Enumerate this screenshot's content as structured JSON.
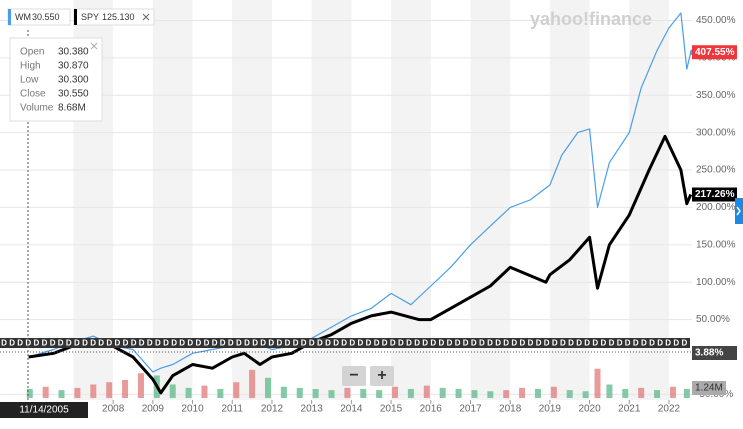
{
  "chart_data": {
    "type": "line",
    "watermark": "yahoo!finance",
    "legend": [
      {
        "name": "WM",
        "price": "30.550"
      },
      {
        "name": "SPY",
        "price": "125.130"
      }
    ],
    "tooltip": {
      "date": "11/14/2005",
      "rows": [
        {
          "label": "Open",
          "value": "30.380"
        },
        {
          "label": "High",
          "value": "30.870"
        },
        {
          "label": "Low",
          "value": "30.300"
        },
        {
          "label": "Close",
          "value": "30.550"
        },
        {
          "label": "Volume",
          "value": "8.68M"
        }
      ]
    },
    "series": [
      {
        "name": "WM",
        "color": "#4a9ee8",
        "tag_color": "#f0363d",
        "last_label": "407.55%",
        "x": [
          2005.87,
          2006.5,
          2007.0,
          2007.5,
          2008.0,
          2008.5,
          2009.0,
          2009.2,
          2009.5,
          2010.0,
          2010.5,
          2011.0,
          2011.5,
          2012.0,
          2012.5,
          2013.0,
          2013.5,
          2014.0,
          2014.5,
          2015.0,
          2015.5,
          2016.0,
          2016.5,
          2017.0,
          2017.5,
          2018.0,
          2018.5,
          2019.0,
          2019.3,
          2019.7,
          2020.0,
          2020.2,
          2020.5,
          2021.0,
          2021.3,
          2021.7,
          2022.0,
          2022.3,
          2022.45,
          2022.55
        ],
        "values": [
          0,
          10,
          20,
          28,
          15,
          10,
          -20,
          -15,
          -10,
          5,
          10,
          15,
          20,
          10,
          15,
          25,
          40,
          55,
          65,
          85,
          70,
          95,
          120,
          150,
          175,
          200,
          210,
          230,
          270,
          300,
          305,
          200,
          260,
          300,
          360,
          410,
          440,
          460,
          385,
          407.55
        ]
      },
      {
        "name": "SPY",
        "color": "#000000",
        "tag_color": "#000000",
        "last_label": "217.26%",
        "x": [
          2005.87,
          2006.5,
          2007.0,
          2007.8,
          2008.5,
          2009.0,
          2009.2,
          2009.5,
          2010.0,
          2010.5,
          2011.0,
          2011.3,
          2011.7,
          2012.0,
          2012.5,
          2013.0,
          2013.5,
          2014.0,
          2014.5,
          2015.0,
          2015.7,
          2016.0,
          2016.5,
          2017.0,
          2017.5,
          2018.0,
          2018.9,
          2019.0,
          2019.5,
          2020.0,
          2020.2,
          2020.5,
          2021.0,
          2021.5,
          2021.9,
          2022.3,
          2022.45,
          2022.55
        ],
        "values": [
          0,
          5,
          15,
          20,
          0,
          -30,
          -48,
          -25,
          -10,
          -15,
          0,
          5,
          -10,
          0,
          5,
          20,
          30,
          45,
          55,
          60,
          50,
          50,
          65,
          80,
          95,
          120,
          100,
          110,
          130,
          160,
          92,
          150,
          190,
          250,
          295,
          250,
          205,
          217.26
        ]
      }
    ],
    "xlim": [
      2005.15,
      2022.58
    ],
    "xticks": [
      2008,
      2009,
      2010,
      2011,
      2012,
      2013,
      2014,
      2015,
      2016,
      2017,
      2018,
      2019,
      2020,
      2021,
      2022
    ],
    "ylim": [
      -57.5,
      464
    ],
    "yticks": [
      {
        "value": -50,
        "label": "-50.00%"
      },
      {
        "value": 50,
        "label": "50.00%"
      },
      {
        "value": 100,
        "label": "100.00%"
      },
      {
        "value": 150,
        "label": "150.00%"
      },
      {
        "value": 200,
        "label": "200.00%"
      },
      {
        "value": 250,
        "label": "250.00%"
      },
      {
        "value": 300,
        "label": "300.00%"
      },
      {
        "value": 350,
        "label": "350.00%"
      },
      {
        "value": 400,
        "label": "400.00%"
      },
      {
        "value": 450,
        "label": "450.00%"
      }
    ],
    "dividend_marker": "D",
    "indicator_label": "3.88%",
    "volume": {
      "unit_label": "1.24M",
      "up_color": "#5cb88a",
      "down_color": "#e07a78",
      "x": [
        2005.9,
        2006.3,
        2006.7,
        2007.1,
        2007.5,
        2007.9,
        2008.3,
        2008.7,
        2009.1,
        2009.5,
        2009.9,
        2010.3,
        2010.7,
        2011.1,
        2011.5,
        2011.9,
        2012.3,
        2012.7,
        2013.1,
        2013.5,
        2013.9,
        2014.3,
        2014.7,
        2015.1,
        2015.5,
        2015.9,
        2016.3,
        2016.7,
        2017.1,
        2017.5,
        2017.9,
        2018.3,
        2018.7,
        2019.1,
        2019.5,
        2019.9,
        2020.2,
        2020.5,
        2020.9,
        2021.3,
        2021.7,
        2022.1,
        2022.45
      ],
      "values": [
        8,
        10,
        7,
        9,
        12,
        14,
        16,
        22,
        20,
        12,
        9,
        11,
        8,
        14,
        25,
        18,
        10,
        9,
        8,
        7,
        9,
        8,
        7,
        10,
        8,
        11,
        9,
        8,
        7,
        6,
        7,
        9,
        8,
        10,
        7,
        6,
        26,
        12,
        8,
        9,
        7,
        10,
        8
      ],
      "ylim": [
        0,
        40
      ]
    },
    "zoom_buttons": [
      "−",
      "+"
    ]
  }
}
